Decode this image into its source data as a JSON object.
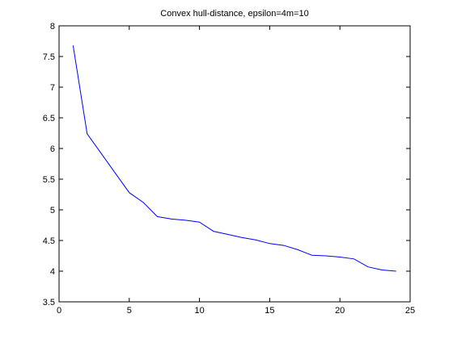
{
  "chart_data": {
    "type": "line",
    "title": "Convex hull-distance, epsilon=4m=10",
    "xlabel": "",
    "ylabel": "",
    "xlim": [
      0,
      25
    ],
    "ylim": [
      3.5,
      8
    ],
    "xticks": [
      0,
      5,
      10,
      15,
      20,
      25
    ],
    "xtick_labels": [
      "0",
      "5",
      "10",
      "15",
      "20",
      "25"
    ],
    "yticks": [
      3.5,
      4,
      4.5,
      5,
      5.5,
      6,
      6.5,
      7,
      7.5,
      8
    ],
    "ytick_labels": [
      "3.5",
      "4",
      "4.5",
      "5",
      "5.5",
      "6",
      "6.5",
      "7",
      "7.5",
      "8"
    ],
    "grid": false,
    "legend": false,
    "series": [
      {
        "color": "#0000ff",
        "x": [
          1,
          2,
          3,
          4,
          5,
          6,
          7,
          8,
          9,
          10,
          11,
          12,
          13,
          14,
          15,
          16,
          17,
          18,
          19,
          20,
          21,
          22,
          23,
          24
        ],
        "y": [
          7.68,
          6.24,
          5.92,
          5.6,
          5.28,
          5.12,
          4.89,
          4.85,
          4.83,
          4.8,
          4.65,
          4.6,
          4.55,
          4.51,
          4.45,
          4.42,
          4.35,
          4.26,
          4.25,
          4.23,
          4.2,
          4.07,
          4.02,
          4.0
        ]
      }
    ]
  }
}
